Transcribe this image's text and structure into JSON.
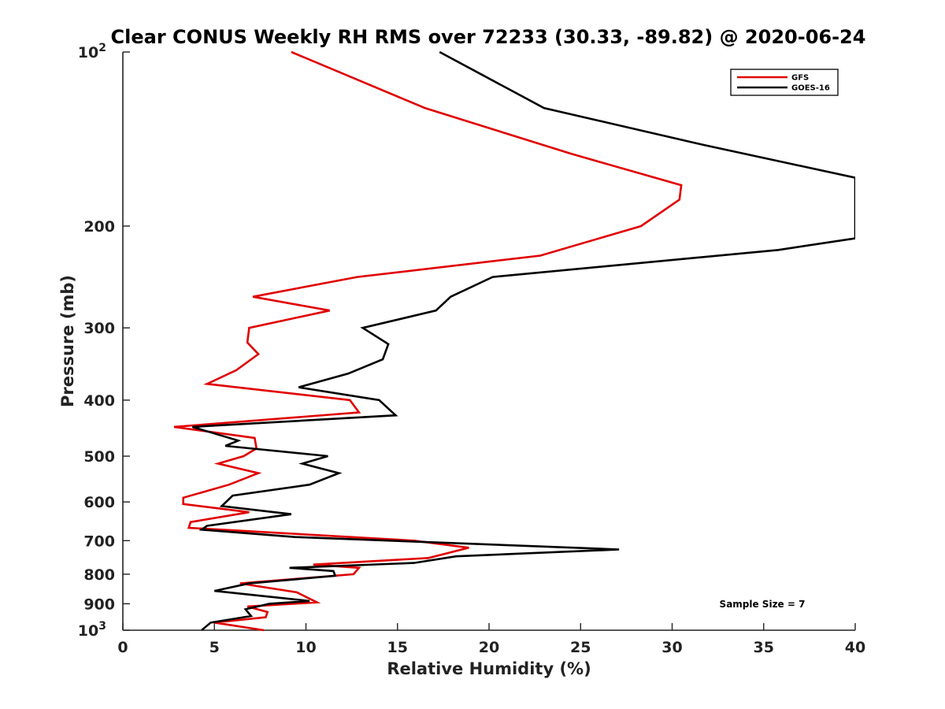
{
  "chart_data": {
    "type": "line",
    "title": "Clear CONUS Weekly RH RMS over 72233 (30.33, -89.82) @ 2020-06-24",
    "xlabel": "Relative Humidity (%)",
    "ylabel": "Pressure (mb)",
    "xlim": [
      0,
      40
    ],
    "ylim": [
      100,
      1000
    ],
    "y_scale": "log",
    "y_reversed": true,
    "grid": false,
    "x_ticks": [
      "0",
      "5",
      "10",
      "15",
      "20",
      "25",
      "30",
      "35",
      "40"
    ],
    "y_ticks": [
      {
        "value": 100,
        "label": "10",
        "sup": "2"
      },
      {
        "value": 200,
        "label": "200"
      },
      {
        "value": 300,
        "label": "300"
      },
      {
        "value": 400,
        "label": "400"
      },
      {
        "value": 500,
        "label": "500"
      },
      {
        "value": 600,
        "label": "600"
      },
      {
        "value": 700,
        "label": "700"
      },
      {
        "value": 800,
        "label": "800"
      },
      {
        "value": 900,
        "label": "900"
      },
      {
        "value": 1000,
        "label": "10",
        "sup": "3"
      }
    ],
    "legend_position": "top-right",
    "series": [
      {
        "name": "GFS",
        "color": "#e00000",
        "points": [
          [
            9.2,
            100
          ],
          [
            16.5,
            125
          ],
          [
            24.5,
            150
          ],
          [
            30.5,
            170
          ],
          [
            30.4,
            180
          ],
          [
            28.3,
            200
          ],
          [
            22.8,
            225
          ],
          [
            12.8,
            245
          ],
          [
            7.1,
            265
          ],
          [
            11.3,
            280
          ],
          [
            6.9,
            300
          ],
          [
            6.8,
            318
          ],
          [
            7.4,
            333
          ],
          [
            6.2,
            355
          ],
          [
            4.6,
            375
          ],
          [
            12.4,
            400
          ],
          [
            12.9,
            420
          ],
          [
            2.8,
            445
          ],
          [
            7.2,
            465
          ],
          [
            7.3,
            485
          ],
          [
            6.6,
            500
          ],
          [
            5.2,
            515
          ],
          [
            7.4,
            535
          ],
          [
            5.8,
            560
          ],
          [
            3.3,
            590
          ],
          [
            3.3,
            605
          ],
          [
            6.9,
            625
          ],
          [
            3.7,
            650
          ],
          [
            3.6,
            665
          ],
          [
            15.9,
            700
          ],
          [
            18.9,
            720
          ],
          [
            16.7,
            750
          ],
          [
            10.4,
            770
          ],
          [
            12.9,
            780
          ],
          [
            12.6,
            800
          ],
          [
            6.4,
            830
          ],
          [
            9.5,
            860
          ],
          [
            10.6,
            895
          ],
          [
            6.8,
            910
          ],
          [
            7.9,
            930
          ],
          [
            7.8,
            950
          ],
          [
            5.0,
            970
          ],
          [
            7.7,
            1000
          ]
        ]
      },
      {
        "name": "GOES-16",
        "color": "#000000",
        "points": [
          [
            17.3,
            100
          ],
          [
            23.0,
            125
          ],
          [
            31.8,
            145
          ],
          [
            40.0,
            165
          ],
          [
            40.0,
            210
          ],
          [
            35.8,
            220
          ],
          [
            20.2,
            245
          ],
          [
            17.9,
            265
          ],
          [
            17.1,
            280
          ],
          [
            13.1,
            300
          ],
          [
            14.5,
            320
          ],
          [
            14.2,
            340
          ],
          [
            12.3,
            360
          ],
          [
            9.6,
            380
          ],
          [
            14.0,
            400
          ],
          [
            14.9,
            425
          ],
          [
            3.8,
            445
          ],
          [
            6.3,
            470
          ],
          [
            5.6,
            480
          ],
          [
            11.2,
            500
          ],
          [
            9.8,
            515
          ],
          [
            11.8,
            535
          ],
          [
            10.2,
            560
          ],
          [
            6.0,
            585
          ],
          [
            5.4,
            610
          ],
          [
            9.2,
            630
          ],
          [
            4.6,
            660
          ],
          [
            4.3,
            670
          ],
          [
            9.4,
            690
          ],
          [
            27.1,
            725
          ],
          [
            18.2,
            745
          ],
          [
            15.9,
            765
          ],
          [
            9.1,
            780
          ],
          [
            11.5,
            790
          ],
          [
            11.6,
            805
          ],
          [
            6.9,
            830
          ],
          [
            5.0,
            855
          ],
          [
            10.2,
            890
          ],
          [
            8.0,
            900
          ],
          [
            6.7,
            920
          ],
          [
            7.0,
            945
          ],
          [
            4.8,
            970
          ],
          [
            4.3,
            1000
          ]
        ]
      }
    ],
    "annotation": "Sample Size = 7"
  }
}
